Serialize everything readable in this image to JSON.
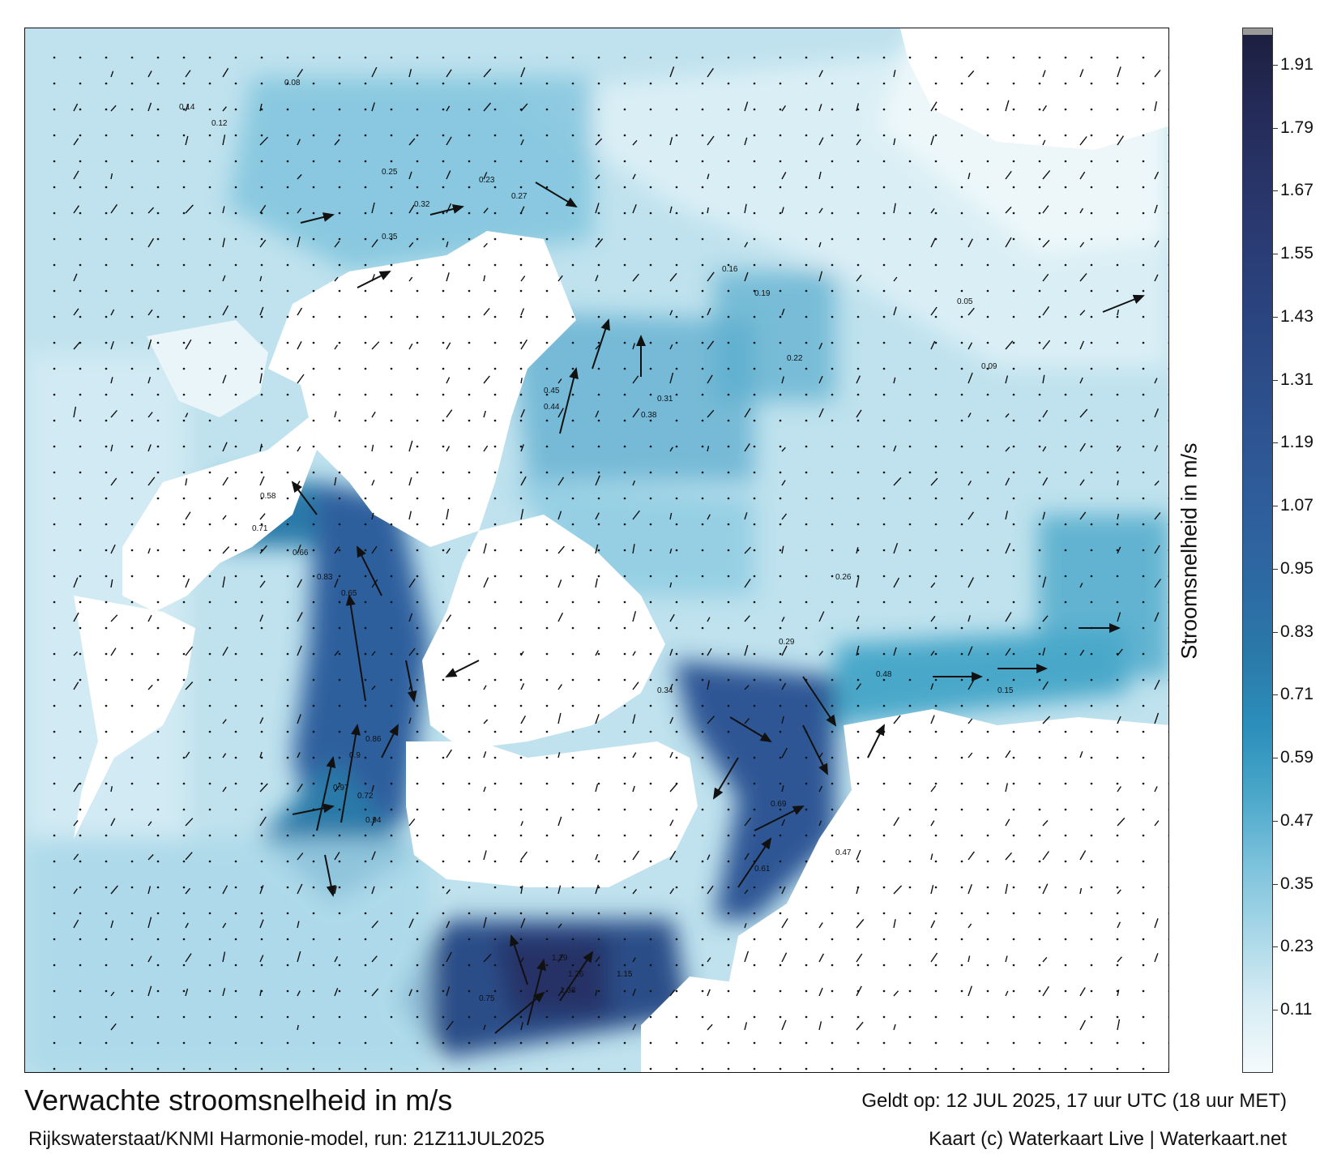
{
  "map": {
    "title": "Verwachte stroomsnelheid in m/s",
    "subtitle": "Rijkswaterstaat/KNMI Harmonie-model, run: 21Z11JUL2025",
    "valid_time": "Geldt op: 12 JUL 2025, 17 uur UTC (18 uur MET)",
    "credit": "Kaart (c) Waterkaart Live | Waterkaart.net",
    "colorbar_label": "Stroomsnelheid in m/s",
    "colorbar_ticks": [
      "1.91",
      "1.79",
      "1.67",
      "1.55",
      "1.43",
      "1.31",
      "1.19",
      "1.07",
      "0.95",
      "0.83",
      "0.71",
      "0.59",
      "0.47",
      "0.35",
      "0.23",
      "0.11"
    ],
    "colorbar_colors": [
      "#f4fafc",
      "#d6ecf4",
      "#a9d7e8",
      "#7cc2dc",
      "#4aa7c9",
      "#2b8fbb",
      "#2b7aa9",
      "#2c6aa4",
      "#2f5f9d",
      "#2e5694",
      "#2c4d88",
      "#2a4480",
      "#2a3b73",
      "#283366",
      "#242a57",
      "#1c1f3f"
    ],
    "sample_values": [
      {
        "text": "0.08"
      },
      {
        "text": "0.14"
      },
      {
        "text": "0.12"
      },
      {
        "text": "0.25"
      },
      {
        "text": "0.32"
      },
      {
        "text": "0.23"
      },
      {
        "text": "0.27"
      },
      {
        "text": "0.35"
      },
      {
        "text": "0.45"
      },
      {
        "text": "0.44"
      },
      {
        "text": "0.38"
      },
      {
        "text": "0.31"
      },
      {
        "text": "0.58"
      },
      {
        "text": "0.71"
      },
      {
        "text": "0.66"
      },
      {
        "text": "0.83"
      },
      {
        "text": "0.65"
      },
      {
        "text": "0.97"
      },
      {
        "text": "0.9"
      },
      {
        "text": "0.72"
      },
      {
        "text": "0.86"
      },
      {
        "text": "0.94"
      },
      {
        "text": "1.29"
      },
      {
        "text": "1.26"
      },
      {
        "text": "1.38"
      },
      {
        "text": "1.15"
      },
      {
        "text": "0.75"
      },
      {
        "text": "0.61"
      },
      {
        "text": "0.69"
      },
      {
        "text": "0.47"
      },
      {
        "text": "0.48"
      },
      {
        "text": "0.26"
      },
      {
        "text": "0.15"
      },
      {
        "text": "0.05"
      },
      {
        "text": "0.09"
      },
      {
        "text": "0.16"
      },
      {
        "text": "0.19"
      },
      {
        "text": "0.22"
      },
      {
        "text": "0.29"
      },
      {
        "text": "0.34"
      }
    ]
  }
}
